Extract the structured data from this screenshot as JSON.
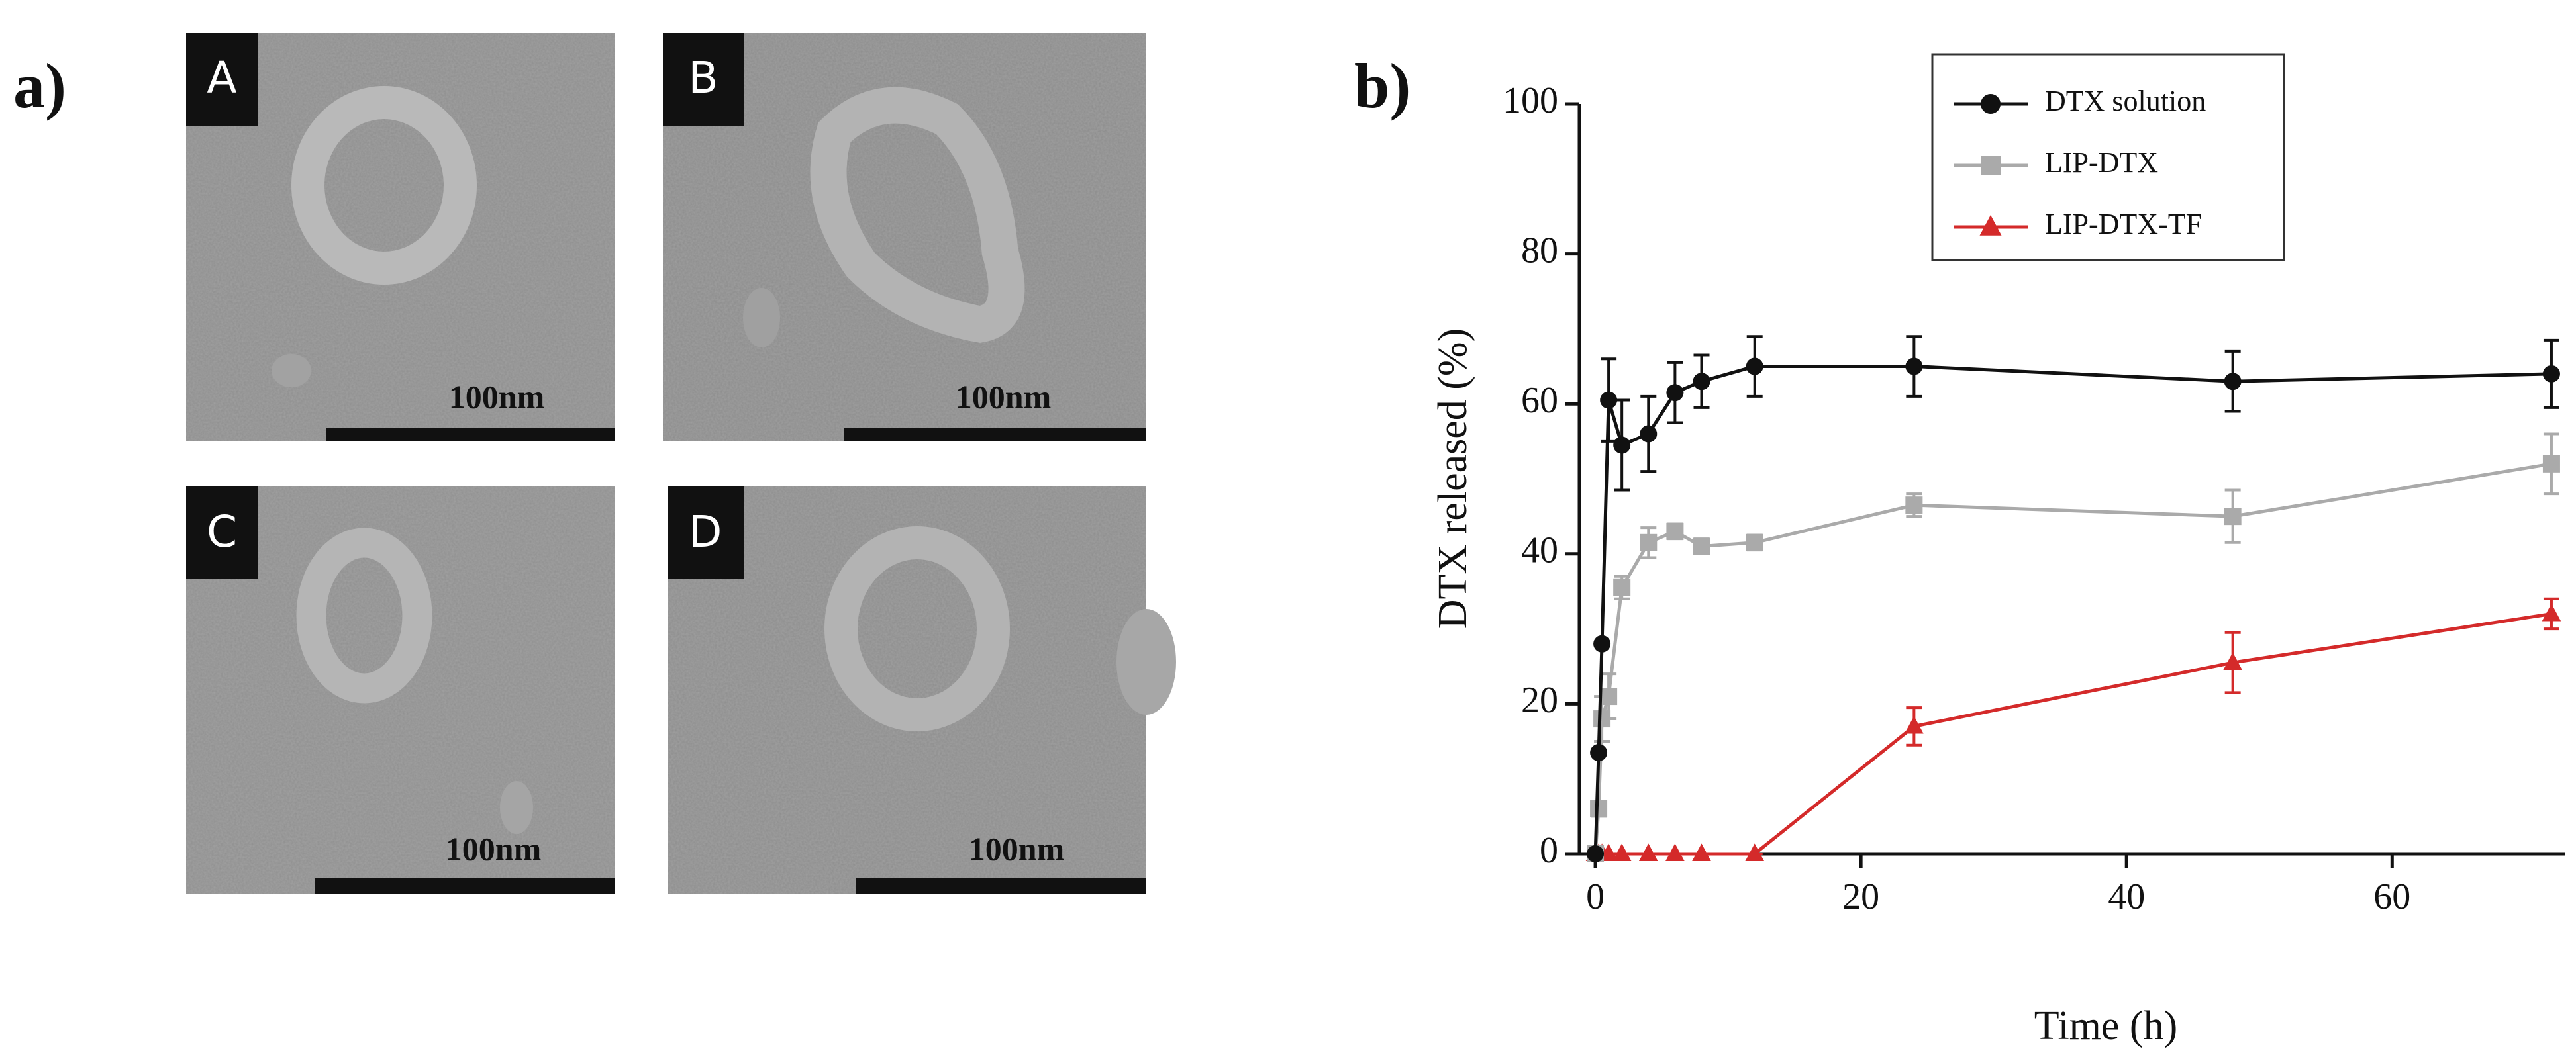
{
  "figure_labels": [
    "a)",
    "b)"
  ],
  "micrographs": [
    {
      "label": "A",
      "scale_bar": "100nm"
    },
    {
      "label": "B",
      "scale_bar": "100nm"
    },
    {
      "label": "C",
      "scale_bar": "100nm"
    },
    {
      "label": "D",
      "scale_bar": "100nm"
    }
  ],
  "chart_data": {
    "type": "line",
    "xlabel": "Time (h)",
    "ylabel": "DTX released (%)",
    "x": [
      0,
      0.25,
      0.5,
      1,
      2,
      4,
      6,
      8,
      12,
      24,
      48,
      72
    ],
    "series": [
      {
        "name": "DTX solution",
        "color": "#111111",
        "marker": "circle",
        "values": [
          0,
          13.5,
          28,
          60.5,
          54.5,
          56,
          61.5,
          63,
          65,
          65,
          63,
          64
        ],
        "errors": [
          0,
          0,
          0,
          5.5,
          6,
          5,
          4,
          3.5,
          4,
          4,
          4,
          4.5
        ]
      },
      {
        "name": "LIP-DTX",
        "color": "#aaaaaa",
        "marker": "square",
        "values": [
          0,
          6,
          18,
          21,
          35.5,
          41.5,
          43,
          41,
          41.5,
          46.5,
          45,
          52
        ],
        "errors": [
          0,
          1,
          3,
          3,
          1.5,
          2,
          1,
          1,
          1,
          1.5,
          3.5,
          4
        ]
      },
      {
        "name": "LIP-DTX-TF",
        "color": "#d42a2a",
        "marker": "triangle",
        "values": [
          0,
          0,
          0,
          0,
          0,
          0,
          0,
          0,
          0,
          17,
          25.5,
          32
        ],
        "errors": [
          0,
          0,
          0,
          0,
          0,
          0,
          0,
          0,
          0,
          2.5,
          4,
          2
        ]
      }
    ],
    "xlim": [
      -1.2,
      73
    ],
    "ylim": [
      0,
      100
    ],
    "xticks": [
      0,
      20,
      40,
      60
    ],
    "yticks": [
      0,
      20,
      40,
      60,
      80,
      100
    ],
    "legend": "upper-right"
  }
}
